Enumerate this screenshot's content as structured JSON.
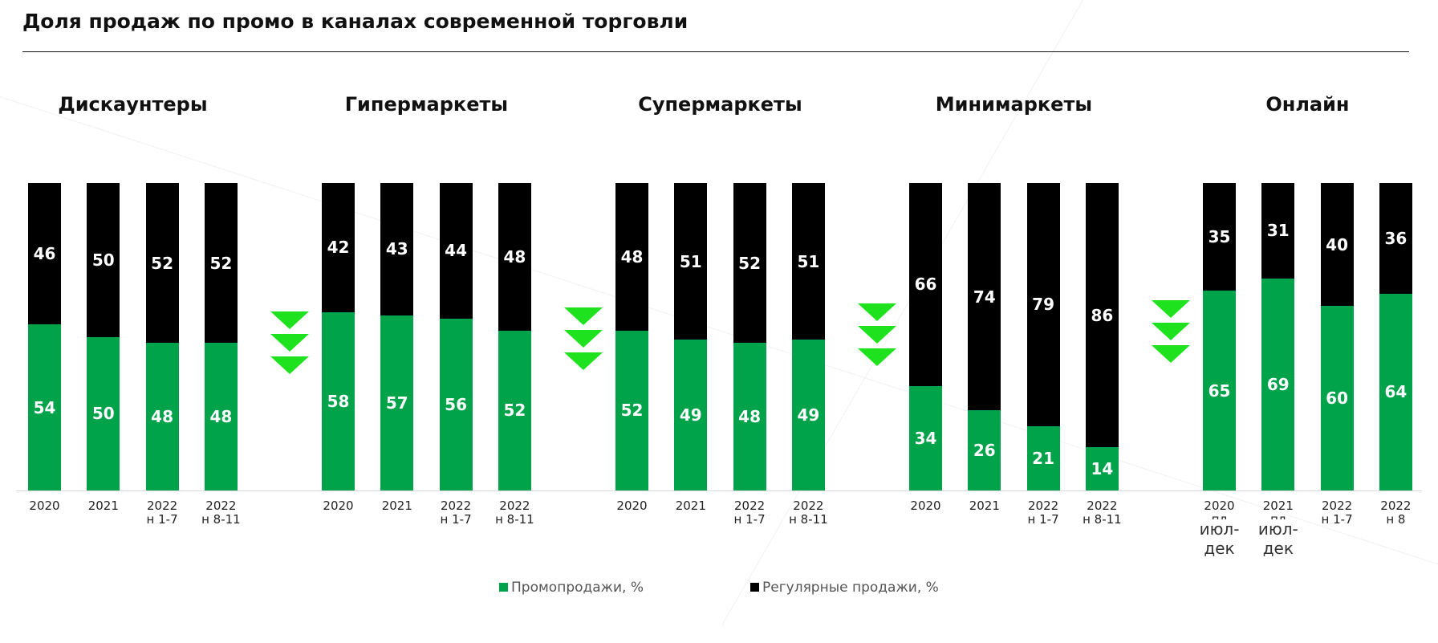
{
  "title": "Доля продаж по промо в каналах современной торговли",
  "colors": {
    "promo": "#00a24a",
    "regular": "#000000",
    "arrows": "#1fe21f"
  },
  "legend": {
    "promo": "Промопродажи, %",
    "regular": "Регулярные продажи, %"
  },
  "chart_data": {
    "type": "bar",
    "stacked": true,
    "normalized_to": 100,
    "groups": [
      {
        "name": "Дискаунтеры",
        "categories": [
          "2020",
          "2021",
          "2022 н 1-7",
          "2022 н 8-11"
        ],
        "labels": [
          [
            "2020"
          ],
          [
            "2021"
          ],
          [
            "2022",
            "н 1-7"
          ],
          [
            "2022",
            "н 8-11"
          ]
        ],
        "promo": [
          54,
          50,
          48,
          48
        ],
        "regular": [
          46,
          50,
          52,
          52
        ]
      },
      {
        "name": "Гипермаркеты",
        "categories": [
          "2020",
          "2021",
          "2022 н 1-7",
          "2022 н 8-11"
        ],
        "labels": [
          [
            "2020"
          ],
          [
            "2021"
          ],
          [
            "2022",
            "н 1-7"
          ],
          [
            "2022",
            "н 8-11"
          ]
        ],
        "promo": [
          58,
          57,
          56,
          52
        ],
        "regular": [
          42,
          43,
          44,
          48
        ]
      },
      {
        "name": "Супермаркеты",
        "categories": [
          "2020",
          "2021",
          "2022 н 1-7",
          "2022 н 8-11"
        ],
        "labels": [
          [
            "2020"
          ],
          [
            "2021"
          ],
          [
            "2022",
            "н 1-7"
          ],
          [
            "2022",
            "н 8-11"
          ]
        ],
        "promo": [
          52,
          49,
          48,
          49
        ],
        "regular": [
          48,
          51,
          52,
          51
        ]
      },
      {
        "name": "Минимаркеты",
        "categories": [
          "2020",
          "2021",
          "2022 н 1-7",
          "2022 н 8-11"
        ],
        "labels": [
          [
            "2020"
          ],
          [
            "2021"
          ],
          [
            "2022",
            "н 1-7"
          ],
          [
            "2022",
            "н 8-11"
          ]
        ],
        "promo": [
          34,
          26,
          21,
          14
        ],
        "regular": [
          66,
          74,
          79,
          86
        ]
      },
      {
        "name": "Онлайн",
        "categories": [
          "2020 пл июл-дек",
          "2021 пл июл-дек",
          "2022 н 1-7",
          "2022 н 8"
        ],
        "labels": [
          [
            "2020",
            "пл",
            "июл-",
            "дек"
          ],
          [
            "2021",
            "пл",
            "июл-",
            "дек"
          ],
          [
            "2022",
            "н 1-7"
          ],
          [
            "2022",
            "н 8"
          ]
        ],
        "promo": [
          65,
          69,
          60,
          64
        ],
        "regular": [
          35,
          31,
          40,
          36
        ]
      }
    ],
    "arrow_indicators": "down"
  }
}
